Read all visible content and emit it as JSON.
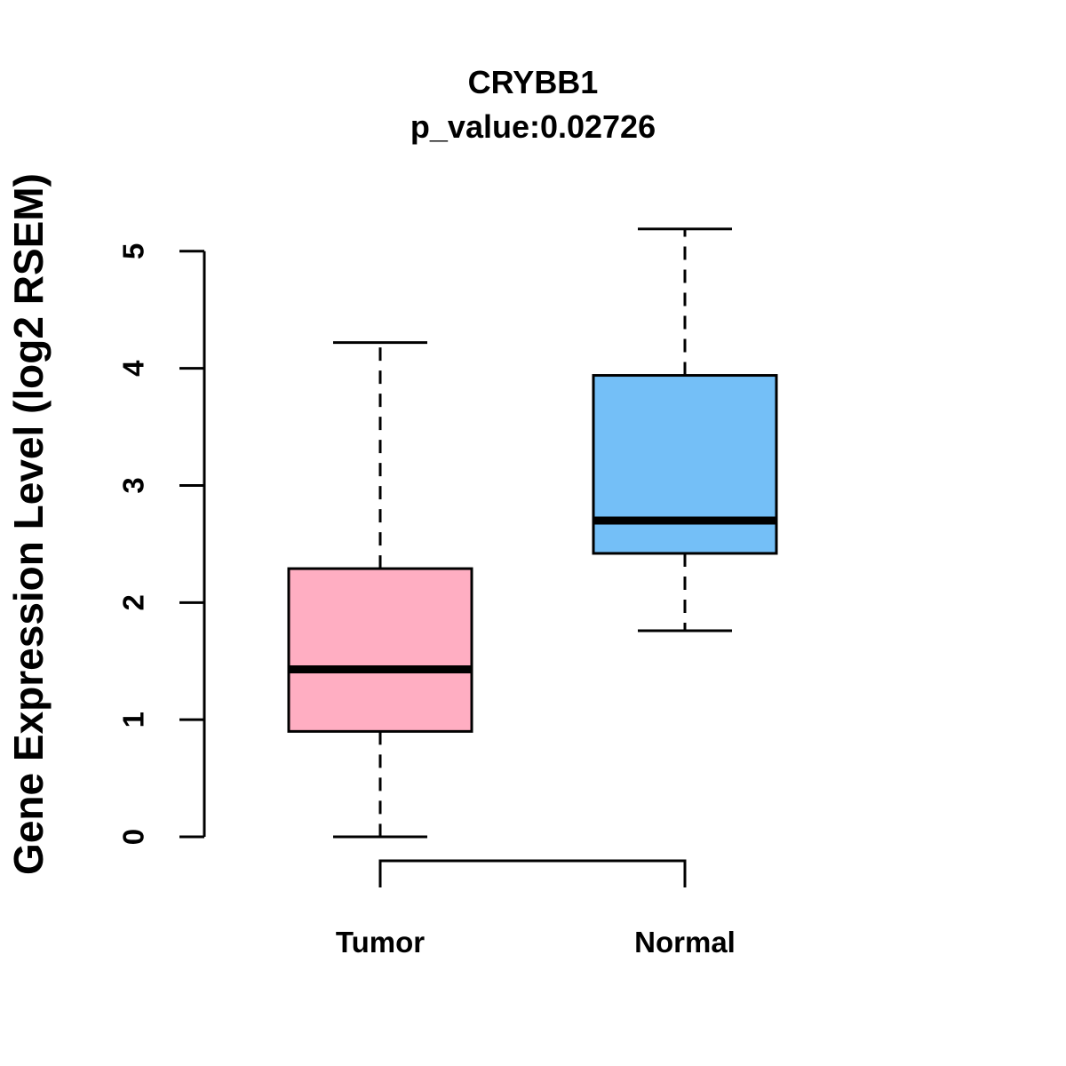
{
  "chart_data": {
    "type": "box",
    "title": "CRYBB1",
    "subtitle": "p_value:0.02726",
    "p_value": 0.02726,
    "ylabel": "Gene Expression Level (log2 RSEM)",
    "xlabel": "",
    "categories": [
      "Tumor",
      "Normal"
    ],
    "yticks": [
      0,
      1,
      2,
      3,
      4,
      5
    ],
    "ylim": [
      0,
      5
    ],
    "grid": false,
    "legend": "none",
    "series": [
      {
        "name": "Tumor",
        "whisker_low": 0.0,
        "q1": 0.9,
        "median": 1.43,
        "q3": 2.29,
        "whisker_high": 4.22,
        "fill": "#FFAEC2"
      },
      {
        "name": "Normal",
        "whisker_low": 1.76,
        "q1": 2.42,
        "median": 2.7,
        "q3": 3.94,
        "whisker_high": 5.19,
        "fill": "#74BFF7"
      }
    ]
  },
  "colors": {
    "tumor_box": "#FFAEC2",
    "normal_box": "#74BFF7",
    "line": "#000000",
    "text": "#000000",
    "background": "#FFFFFF"
  }
}
